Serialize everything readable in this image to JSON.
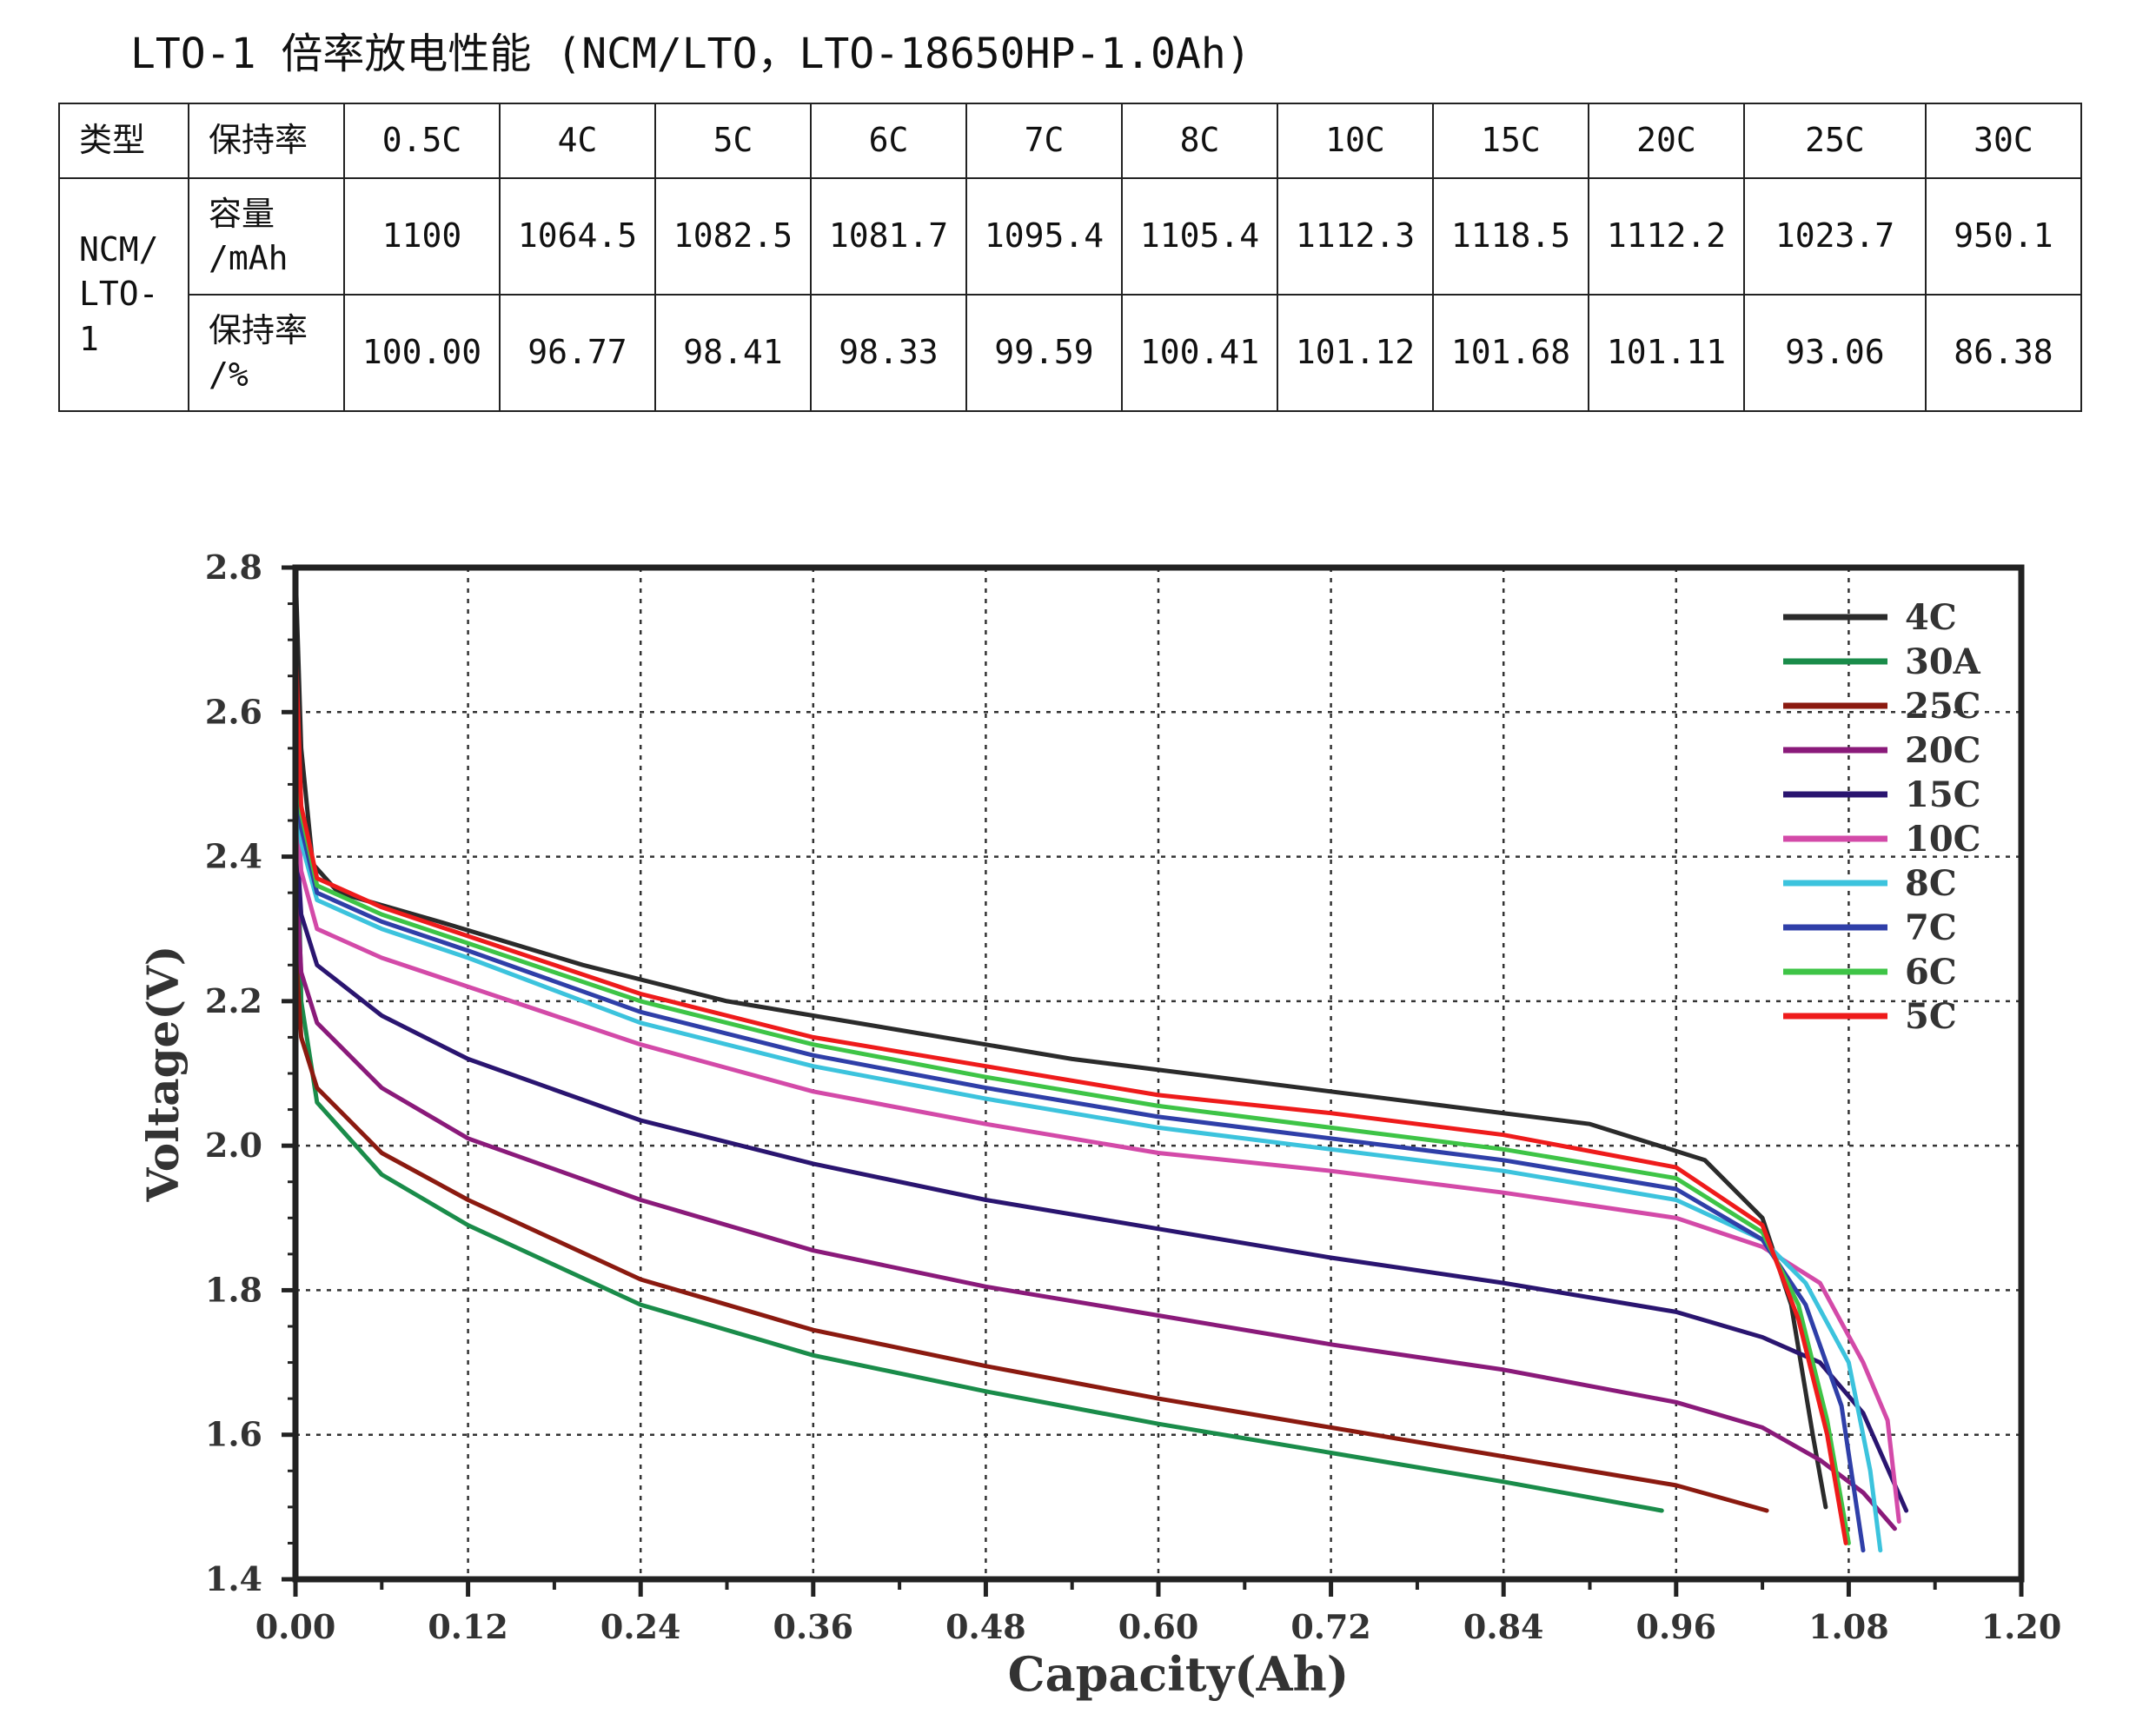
{
  "title": "LTO-1 倍率放电性能 (NCM/LTO，LTO-18650HP-1.0Ah)",
  "table": {
    "header": [
      "类型",
      "保持率",
      "0.5C",
      "4C",
      "5C",
      "6C",
      "7C",
      "8C",
      "10C",
      "15C",
      "20C",
      "25C",
      "30C"
    ],
    "type_label_lines": [
      "NCM/",
      "LTO-",
      "1"
    ],
    "rows": [
      {
        "label_lines": [
          "容量",
          "/mAh"
        ],
        "values": [
          "1100",
          "1064.5",
          "1082.5",
          "1081.7",
          "1095.4",
          "1105.4",
          "1112.3",
          "1118.5",
          "1112.2",
          "1023.7",
          "950.1"
        ]
      },
      {
        "label_lines": [
          "保持率",
          "/%"
        ],
        "values": [
          "100.00",
          "96.77",
          "98.41",
          "98.33",
          "99.59",
          "100.41",
          "101.12",
          "101.68",
          "101.11",
          "93.06",
          "86.38"
        ]
      }
    ]
  },
  "chart_data": {
    "type": "line",
    "xlabel": "Capacity(Ah)",
    "ylabel": "Voltage(V)",
    "xlim": [
      0,
      1.2
    ],
    "ylim": [
      1.4,
      2.8
    ],
    "xticks": [
      "0.00",
      "0.12",
      "0.24",
      "0.36",
      "0.48",
      "0.60",
      "0.72",
      "0.84",
      "0.96",
      "1.08",
      "1.20"
    ],
    "yticks": [
      "1.4",
      "1.6",
      "1.8",
      "2.0",
      "2.2",
      "2.4",
      "2.6",
      "2.8"
    ],
    "grid": true,
    "legend_position": "top-right",
    "series": [
      {
        "name": "4C",
        "color": "#2b2b2b",
        "points": [
          [
            0,
            2.8
          ],
          [
            0.004,
            2.55
          ],
          [
            0.012,
            2.39
          ],
          [
            0.03,
            2.35
          ],
          [
            0.1,
            2.31
          ],
          [
            0.2,
            2.25
          ],
          [
            0.3,
            2.2
          ],
          [
            0.42,
            2.16
          ],
          [
            0.54,
            2.12
          ],
          [
            0.66,
            2.09
          ],
          [
            0.78,
            2.06
          ],
          [
            0.9,
            2.03
          ],
          [
            0.98,
            1.98
          ],
          [
            1.02,
            1.9
          ],
          [
            1.04,
            1.78
          ],
          [
            1.055,
            1.6
          ],
          [
            1.064,
            1.5
          ]
        ]
      },
      {
        "name": "30A",
        "color": "#1a8c4a",
        "points": [
          [
            0,
            2.6
          ],
          [
            0.004,
            2.2
          ],
          [
            0.015,
            2.06
          ],
          [
            0.06,
            1.96
          ],
          [
            0.12,
            1.89
          ],
          [
            0.24,
            1.78
          ],
          [
            0.36,
            1.71
          ],
          [
            0.48,
            1.66
          ],
          [
            0.6,
            1.615
          ],
          [
            0.72,
            1.575
          ],
          [
            0.84,
            1.535
          ],
          [
            0.95,
            1.495
          ]
        ]
      },
      {
        "name": "25C",
        "color": "#8b1a10",
        "points": [
          [
            0,
            2.28
          ],
          [
            0.004,
            2.15
          ],
          [
            0.015,
            2.08
          ],
          [
            0.06,
            1.99
          ],
          [
            0.12,
            1.925
          ],
          [
            0.24,
            1.815
          ],
          [
            0.36,
            1.745
          ],
          [
            0.48,
            1.695
          ],
          [
            0.6,
            1.65
          ],
          [
            0.72,
            1.61
          ],
          [
            0.84,
            1.57
          ],
          [
            0.96,
            1.53
          ],
          [
            1.023,
            1.495
          ]
        ]
      },
      {
        "name": "20C",
        "color": "#8a1a7a",
        "points": [
          [
            0,
            2.4
          ],
          [
            0.004,
            2.24
          ],
          [
            0.015,
            2.17
          ],
          [
            0.06,
            2.08
          ],
          [
            0.12,
            2.01
          ],
          [
            0.24,
            1.925
          ],
          [
            0.36,
            1.855
          ],
          [
            0.48,
            1.805
          ],
          [
            0.6,
            1.765
          ],
          [
            0.72,
            1.725
          ],
          [
            0.84,
            1.69
          ],
          [
            0.96,
            1.645
          ],
          [
            1.02,
            1.61
          ],
          [
            1.06,
            1.565
          ],
          [
            1.09,
            1.52
          ],
          [
            1.112,
            1.47
          ]
        ]
      },
      {
        "name": "15C",
        "color": "#2a1570",
        "points": [
          [
            0,
            2.45
          ],
          [
            0.004,
            2.32
          ],
          [
            0.015,
            2.25
          ],
          [
            0.06,
            2.18
          ],
          [
            0.12,
            2.12
          ],
          [
            0.24,
            2.035
          ],
          [
            0.36,
            1.975
          ],
          [
            0.48,
            1.925
          ],
          [
            0.6,
            1.885
          ],
          [
            0.72,
            1.845
          ],
          [
            0.84,
            1.81
          ],
          [
            0.96,
            1.77
          ],
          [
            1.02,
            1.735
          ],
          [
            1.06,
            1.7
          ],
          [
            1.09,
            1.63
          ],
          [
            1.12,
            1.495
          ]
        ]
      },
      {
        "name": "10C",
        "color": "#d34aa8",
        "points": [
          [
            0,
            2.5
          ],
          [
            0.004,
            2.38
          ],
          [
            0.015,
            2.3
          ],
          [
            0.06,
            2.26
          ],
          [
            0.12,
            2.22
          ],
          [
            0.24,
            2.14
          ],
          [
            0.36,
            2.075
          ],
          [
            0.48,
            2.03
          ],
          [
            0.6,
            1.99
          ],
          [
            0.72,
            1.965
          ],
          [
            0.84,
            1.935
          ],
          [
            0.96,
            1.9
          ],
          [
            1.02,
            1.86
          ],
          [
            1.06,
            1.81
          ],
          [
            1.09,
            1.7
          ],
          [
            1.107,
            1.62
          ],
          [
            1.115,
            1.48
          ]
        ]
      },
      {
        "name": "8C",
        "color": "#3cc3dd",
        "points": [
          [
            0,
            2.55
          ],
          [
            0.004,
            2.42
          ],
          [
            0.015,
            2.34
          ],
          [
            0.06,
            2.3
          ],
          [
            0.12,
            2.26
          ],
          [
            0.24,
            2.17
          ],
          [
            0.36,
            2.11
          ],
          [
            0.48,
            2.065
          ],
          [
            0.6,
            2.025
          ],
          [
            0.72,
            1.995
          ],
          [
            0.84,
            1.965
          ],
          [
            0.96,
            1.925
          ],
          [
            1.02,
            1.87
          ],
          [
            1.05,
            1.81
          ],
          [
            1.08,
            1.7
          ],
          [
            1.095,
            1.55
          ],
          [
            1.102,
            1.44
          ]
        ]
      },
      {
        "name": "7C",
        "color": "#2f3fa8",
        "points": [
          [
            0,
            2.58
          ],
          [
            0.004,
            2.44
          ],
          [
            0.015,
            2.35
          ],
          [
            0.06,
            2.31
          ],
          [
            0.12,
            2.27
          ],
          [
            0.24,
            2.185
          ],
          [
            0.36,
            2.125
          ],
          [
            0.48,
            2.08
          ],
          [
            0.6,
            2.04
          ],
          [
            0.72,
            2.01
          ],
          [
            0.84,
            1.98
          ],
          [
            0.96,
            1.94
          ],
          [
            1.02,
            1.87
          ],
          [
            1.05,
            1.78
          ],
          [
            1.075,
            1.64
          ],
          [
            1.09,
            1.44
          ]
        ]
      },
      {
        "name": "6C",
        "color": "#3ec446",
        "points": [
          [
            0,
            2.62
          ],
          [
            0.004,
            2.46
          ],
          [
            0.015,
            2.36
          ],
          [
            0.06,
            2.32
          ],
          [
            0.12,
            2.28
          ],
          [
            0.24,
            2.2
          ],
          [
            0.36,
            2.14
          ],
          [
            0.48,
            2.095
          ],
          [
            0.6,
            2.055
          ],
          [
            0.72,
            2.025
          ],
          [
            0.84,
            1.995
          ],
          [
            0.96,
            1.955
          ],
          [
            1.02,
            1.88
          ],
          [
            1.045,
            1.78
          ],
          [
            1.065,
            1.62
          ],
          [
            1.08,
            1.45
          ]
        ]
      },
      {
        "name": "5C",
        "color": "#ee1b1b",
        "points": [
          [
            0,
            2.7
          ],
          [
            0.004,
            2.47
          ],
          [
            0.015,
            2.37
          ],
          [
            0.06,
            2.33
          ],
          [
            0.12,
            2.29
          ],
          [
            0.24,
            2.21
          ],
          [
            0.36,
            2.15
          ],
          [
            0.48,
            2.11
          ],
          [
            0.6,
            2.07
          ],
          [
            0.72,
            2.045
          ],
          [
            0.84,
            2.015
          ],
          [
            0.96,
            1.97
          ],
          [
            1.02,
            1.89
          ],
          [
            1.045,
            1.76
          ],
          [
            1.065,
            1.6
          ],
          [
            1.078,
            1.45
          ]
        ]
      }
    ]
  }
}
